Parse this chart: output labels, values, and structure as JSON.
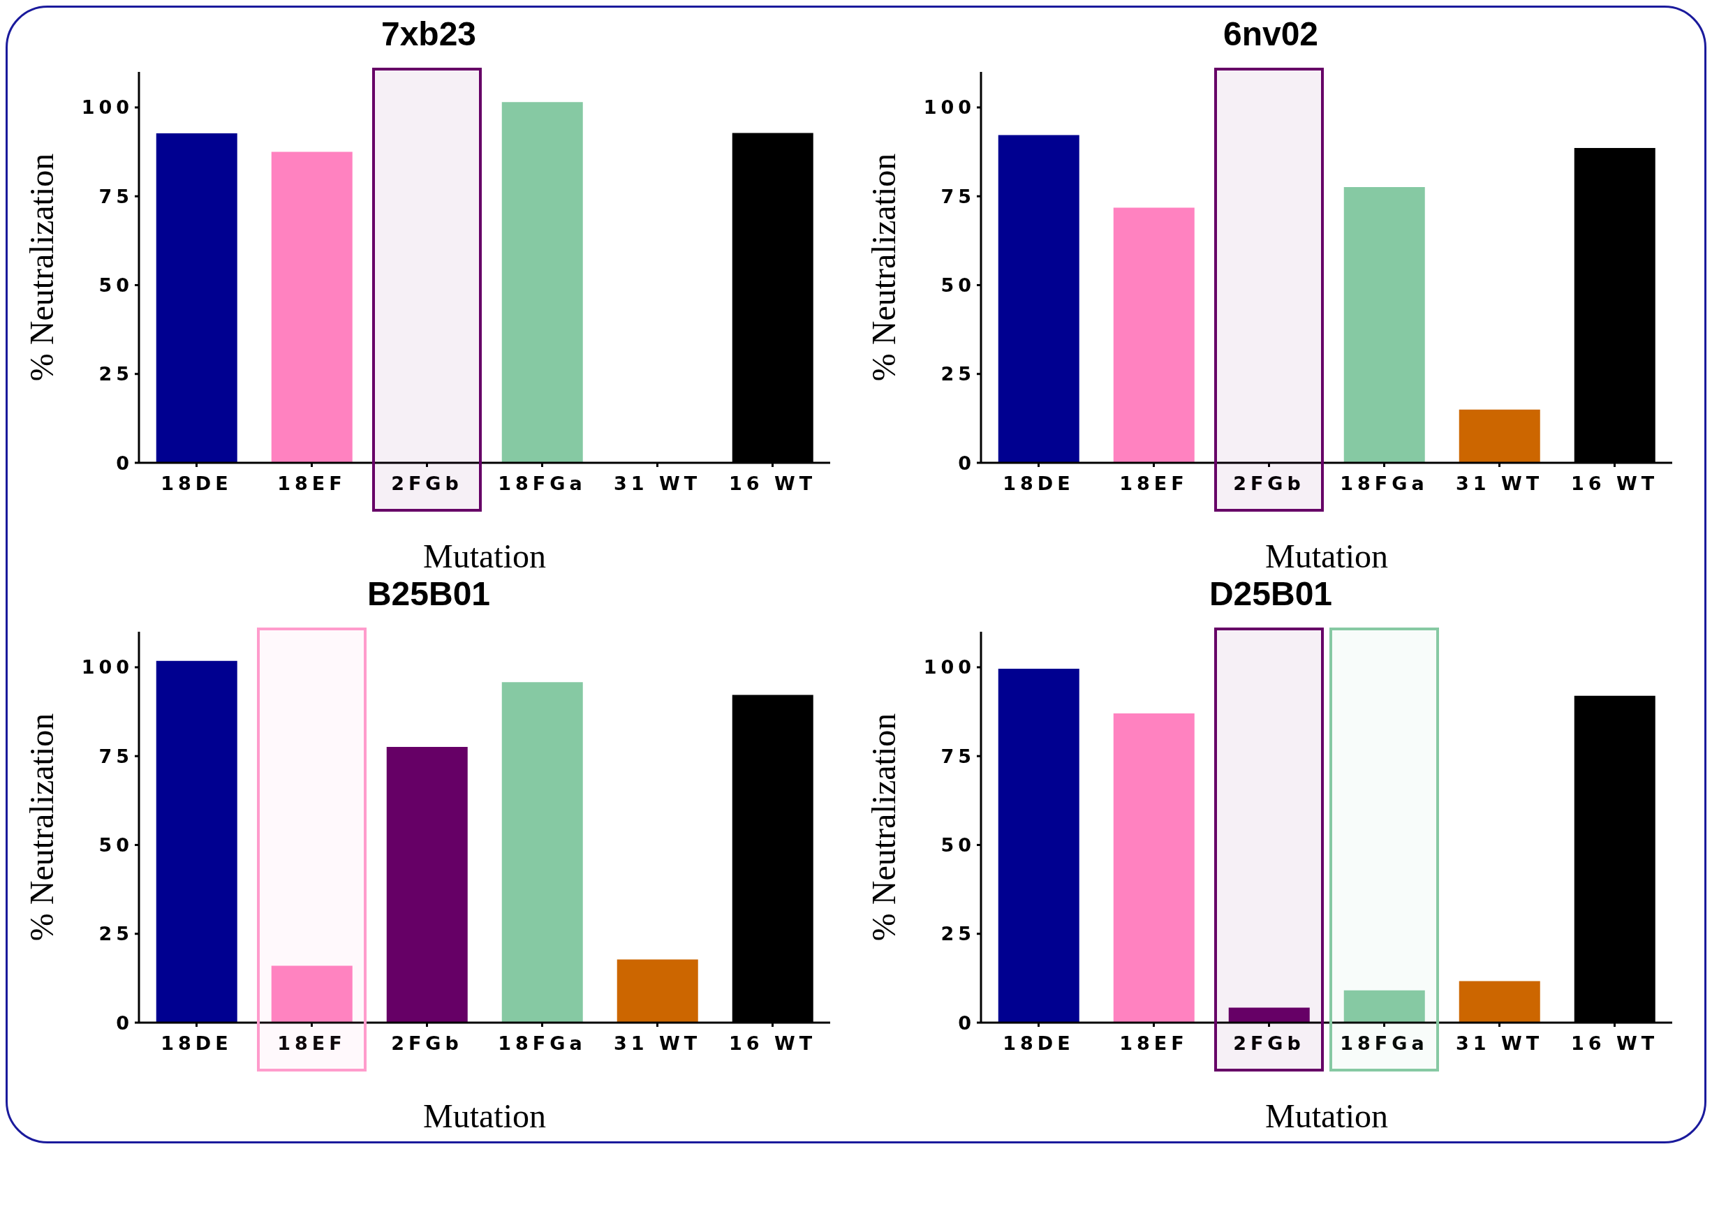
{
  "chart_data": [
    {
      "type": "bar",
      "title": "7xb23",
      "xlabel": "Mutation",
      "ylabel": "% Neutralization",
      "categories": [
        "18DE",
        "18EF",
        "2FGb",
        "18FGa",
        "31 WT",
        "16 WT"
      ],
      "values": [
        92.7,
        87.5,
        0,
        101.5,
        0,
        92.8
      ],
      "colors": [
        "#000090",
        "#ff82c0",
        "#660066",
        "#86c9a3",
        "#cc6600",
        "#000000"
      ],
      "ylim": [
        0,
        110
      ],
      "yticks": [
        0,
        25,
        50,
        75,
        100
      ],
      "bands": [
        {
          "axis": "x",
          "from": "2FGb",
          "to": "2FGb",
          "color": "#660066"
        }
      ]
    },
    {
      "type": "bar",
      "title": "6nv02",
      "xlabel": "Mutation",
      "ylabel": "% Neutralization",
      "categories": [
        "18DE",
        "18EF",
        "2FGb",
        "18FGa",
        "31 WT",
        "16 WT"
      ],
      "values": [
        92.2,
        71.8,
        0,
        77.6,
        15.0,
        88.6
      ],
      "colors": [
        "#000090",
        "#ff82c0",
        "#660066",
        "#86c9a3",
        "#cc6600",
        "#000000"
      ],
      "ylim": [
        0,
        110
      ],
      "yticks": [
        0,
        25,
        50,
        75,
        100
      ],
      "bands": [
        {
          "axis": "x",
          "from": "2FGb",
          "to": "2FGb",
          "color": "#660066"
        }
      ]
    },
    {
      "type": "bar",
      "title": "B25B01",
      "xlabel": "Mutation",
      "ylabel": "% Neutralization",
      "categories": [
        "18DE",
        "18EF",
        "2FGb",
        "18FGa",
        "31 WT",
        "16 WT"
      ],
      "values": [
        101.8,
        16.0,
        77.6,
        95.8,
        17.8,
        92.2
      ],
      "colors": [
        "#000090",
        "#ff82c0",
        "#660066",
        "#86c9a3",
        "#cc6600",
        "#000000"
      ],
      "ylim": [
        0,
        110
      ],
      "yticks": [
        0,
        25,
        50,
        75,
        100
      ],
      "bands": [
        {
          "axis": "x",
          "from": "18EF",
          "to": "18EF",
          "color": "#ff9ccc"
        }
      ]
    },
    {
      "type": "bar",
      "title": "D25B01",
      "xlabel": "Mutation",
      "ylabel": "% Neutralization",
      "categories": [
        "18DE",
        "18EF",
        "2FGb",
        "18FGa",
        "31 WT",
        "16 WT"
      ],
      "values": [
        99.6,
        87.0,
        4.2,
        9.1,
        11.7,
        92.0
      ],
      "colors": [
        "#000090",
        "#ff82c0",
        "#660066",
        "#86c9a3",
        "#cc6600",
        "#000000"
      ],
      "ylim": [
        0,
        110
      ],
      "yticks": [
        0,
        25,
        50,
        75,
        100
      ],
      "bands": [
        {
          "axis": "x",
          "from": "2FGb",
          "to": "2FGb",
          "color": "#660066"
        },
        {
          "axis": "x",
          "from": "18FGa",
          "to": "18FGa",
          "color": "#86c9a3"
        }
      ]
    }
  ]
}
